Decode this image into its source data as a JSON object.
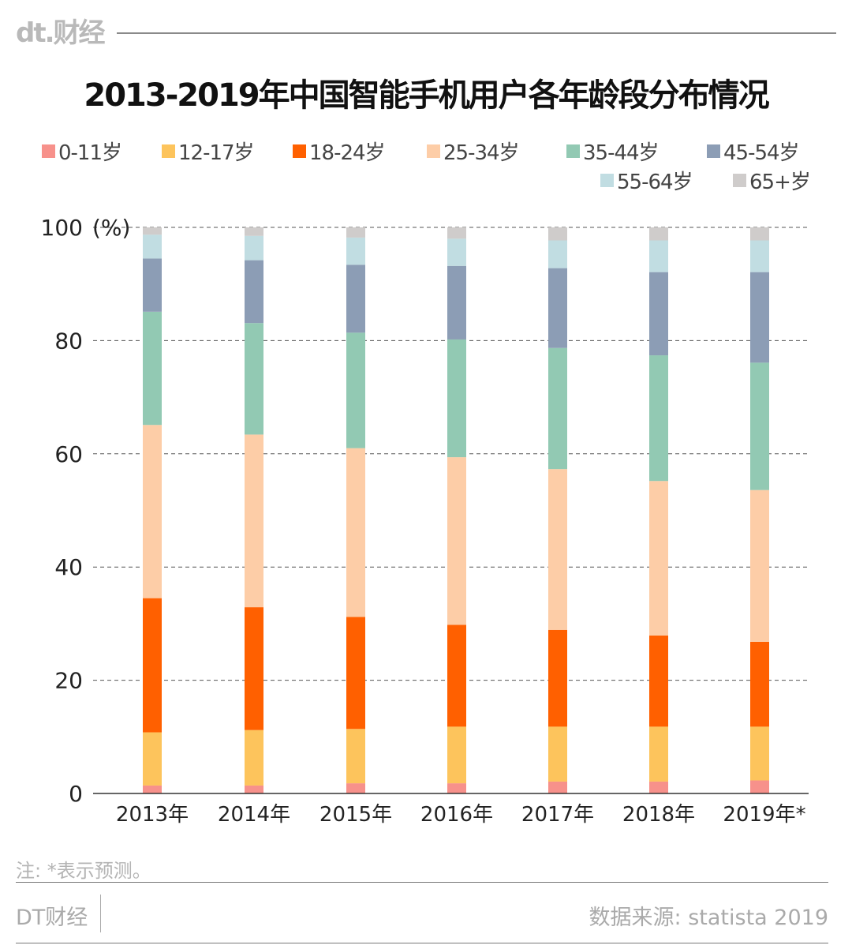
{
  "header": {
    "logo": "dt.财经"
  },
  "chart_data": {
    "type": "bar",
    "stacked": true,
    "title": "2013-2019年中国智能手机用户各年龄段分布情况",
    "ylabel": "(%)",
    "ylim": [
      0,
      100
    ],
    "yticks": [
      "0",
      "20",
      "40",
      "60",
      "80",
      "100"
    ],
    "grid": "horizontal-dashed",
    "legend_position": "top",
    "categories": [
      "2013年",
      "2014年",
      "2015年",
      "2016年",
      "2017年",
      "2018年",
      "2019年*"
    ],
    "series": [
      {
        "name": "0-11岁",
        "color": "#f7918b",
        "values": [
          1.4,
          1.4,
          1.8,
          1.8,
          2.1,
          2.1,
          2.3
        ]
      },
      {
        "name": "12-17岁",
        "color": "#fdc45c",
        "values": [
          9.4,
          9.8,
          9.6,
          10.0,
          9.7,
          9.7,
          9.5
        ]
      },
      {
        "name": "18-24岁",
        "color": "#ff6000",
        "values": [
          23.7,
          21.7,
          19.8,
          18.0,
          17.1,
          16.1,
          15.0
        ]
      },
      {
        "name": "25-34岁",
        "color": "#fdcda7",
        "values": [
          30.6,
          30.5,
          29.8,
          29.6,
          28.4,
          27.3,
          26.8
        ]
      },
      {
        "name": "35-44岁",
        "color": "#92c9b3",
        "values": [
          20.0,
          19.7,
          20.4,
          20.8,
          21.4,
          22.2,
          22.5
        ]
      },
      {
        "name": "45-54岁",
        "color": "#8c9db5",
        "values": [
          9.4,
          11.1,
          12.0,
          13.0,
          14.1,
          14.7,
          16.0
        ]
      },
      {
        "name": "55-64岁",
        "color": "#c1dde2",
        "values": [
          4.2,
          4.3,
          4.8,
          4.8,
          4.9,
          5.6,
          5.6
        ]
      },
      {
        "name": "65+岁",
        "color": "#cfcccb",
        "values": [
          1.3,
          1.5,
          1.8,
          2.0,
          2.3,
          2.3,
          2.3
        ]
      }
    ]
  },
  "footer": {
    "note": "注: *表示预测。",
    "brand": "DT财经",
    "source": "数据来源: statista 2019"
  }
}
